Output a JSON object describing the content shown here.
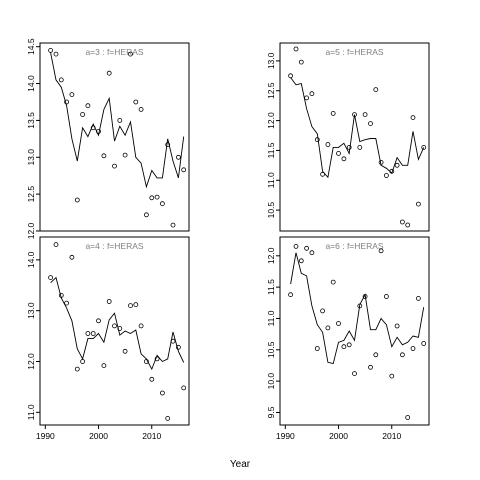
{
  "figure": {
    "xlabel": "Year"
  },
  "colors": {
    "line": "#000000",
    "points": "#000000",
    "frame": "#000000",
    "panel_title": "#808080"
  },
  "chart_data": [
    {
      "type": "scatter",
      "title": "a=3 : f=HERAS",
      "xlim": [
        1989,
        2017
      ],
      "ylim": [
        12.0,
        14.55
      ],
      "xticks": [
        1990,
        2000,
        2010
      ],
      "show_x_ticks": false,
      "yticks": [
        12.0,
        12.5,
        13.0,
        13.5,
        14.0,
        14.5
      ],
      "ytick_labels": [
        "12.0",
        "12.5",
        "13.0",
        "13.5",
        "14.0",
        "14.5"
      ],
      "series": [
        {
          "kind": "points",
          "x": [
            1991,
            1992,
            1993,
            1994,
            1995,
            1996,
            1997,
            1998,
            1999,
            2000,
            2001,
            2002,
            2003,
            2004,
            2005,
            2006,
            2007,
            2008,
            2009,
            2010,
            2011,
            2012,
            2013,
            2014,
            2015,
            2016
          ],
          "y": [
            14.45,
            14.4,
            14.05,
            13.75,
            13.85,
            12.42,
            13.58,
            13.7,
            13.4,
            13.35,
            13.02,
            14.14,
            12.88,
            13.5,
            13.03,
            14.4,
            13.75,
            13.65,
            12.22,
            12.45,
            12.46,
            12.37,
            13.17,
            12.08,
            13.0,
            12.83
          ]
        },
        {
          "kind": "line",
          "x": [
            1991,
            1992,
            1993,
            1994,
            1995,
            1996,
            1997,
            1998,
            1999,
            2000,
            2001,
            2002,
            2003,
            2004,
            2005,
            2006,
            2007,
            2008,
            2009,
            2010,
            2011,
            2012,
            2013,
            2014,
            2015,
            2016
          ],
          "y": [
            14.42,
            14.05,
            13.95,
            13.7,
            13.25,
            12.95,
            13.4,
            13.28,
            13.45,
            13.3,
            13.65,
            13.8,
            13.22,
            13.42,
            13.3,
            13.48,
            13.0,
            12.92,
            12.6,
            12.82,
            12.72,
            12.72,
            13.25,
            12.95,
            12.72,
            13.28
          ]
        }
      ]
    },
    {
      "type": "scatter",
      "title": "a=5 : f=HERAS",
      "xlim": [
        1989,
        2017
      ],
      "ylim": [
        10.15,
        13.3
      ],
      "xticks": [
        1990,
        2000,
        2010
      ],
      "show_x_ticks": false,
      "yticks": [
        10.5,
        11.0,
        11.5,
        12.0,
        12.5,
        13.0
      ],
      "ytick_labels": [
        "10.5",
        "11.0",
        "11.5",
        "12.0",
        "12.5",
        "13.0"
      ],
      "series": [
        {
          "kind": "points",
          "x": [
            1991,
            1992,
            1993,
            1994,
            1995,
            1996,
            1997,
            1998,
            1999,
            2000,
            2001,
            2002,
            2003,
            2004,
            2005,
            2006,
            2007,
            2008,
            2009,
            2010,
            2011,
            2012,
            2013,
            2014,
            2015,
            2016
          ],
          "y": [
            12.75,
            13.2,
            12.98,
            12.38,
            12.45,
            11.68,
            11.1,
            11.6,
            12.12,
            11.45,
            11.36,
            11.55,
            12.1,
            11.55,
            12.1,
            11.95,
            12.52,
            11.3,
            11.08,
            11.15,
            11.25,
            10.3,
            10.25,
            12.05,
            10.6,
            11.55
          ]
        },
        {
          "kind": "line",
          "x": [
            1991,
            1992,
            1993,
            1994,
            1995,
            1996,
            1997,
            1998,
            1999,
            2000,
            2001,
            2002,
            2003,
            2004,
            2005,
            2006,
            2007,
            2008,
            2009,
            2010,
            2011,
            2012,
            2013,
            2014,
            2015,
            2016
          ],
          "y": [
            12.72,
            12.6,
            12.62,
            12.2,
            11.9,
            11.78,
            11.15,
            11.05,
            11.55,
            11.55,
            11.62,
            11.45,
            12.1,
            11.65,
            11.68,
            11.7,
            11.7,
            11.25,
            11.2,
            11.12,
            11.38,
            11.25,
            11.25,
            11.82,
            11.35,
            11.55
          ]
        }
      ]
    },
    {
      "type": "scatter",
      "title": "a=4 : f=HERAS",
      "xlim": [
        1989,
        2017
      ],
      "ylim": [
        10.75,
        14.45
      ],
      "xticks": [
        1990,
        2000,
        2010
      ],
      "show_x_ticks": true,
      "yticks": [
        11.0,
        12.0,
        13.0,
        14.0
      ],
      "ytick_labels": [
        "11.0",
        "12.0",
        "13.0",
        "14.0"
      ],
      "series": [
        {
          "kind": "points",
          "x": [
            1991,
            1992,
            1993,
            1994,
            1995,
            1996,
            1997,
            1998,
            1999,
            2000,
            2001,
            2002,
            2003,
            2004,
            2005,
            2006,
            2007,
            2008,
            2009,
            2010,
            2011,
            2012,
            2013,
            2014,
            2015,
            2016
          ],
          "y": [
            13.65,
            14.3,
            13.3,
            13.15,
            14.05,
            11.85,
            12.0,
            12.55,
            12.55,
            12.8,
            11.92,
            13.18,
            12.7,
            12.65,
            12.2,
            13.1,
            13.12,
            12.7,
            12.0,
            11.65,
            12.05,
            11.38,
            10.88,
            12.4,
            12.28,
            11.48
          ]
        },
        {
          "kind": "line",
          "x": [
            1991,
            1992,
            1993,
            1994,
            1995,
            1996,
            1997,
            1998,
            1999,
            2000,
            2001,
            2002,
            2003,
            2004,
            2005,
            2006,
            2007,
            2008,
            2009,
            2010,
            2011,
            2012,
            2013,
            2014,
            2015,
            2016
          ],
          "y": [
            13.55,
            13.65,
            13.25,
            13.05,
            12.8,
            12.25,
            12.05,
            12.45,
            12.45,
            12.55,
            12.38,
            12.82,
            12.95,
            12.52,
            12.6,
            12.55,
            12.62,
            12.15,
            12.05,
            11.85,
            12.12,
            12.0,
            12.05,
            12.58,
            12.2,
            11.98
          ]
        }
      ]
    },
    {
      "type": "scatter",
      "title": "a=6 : f=HERAS",
      "xlim": [
        1989,
        2017
      ],
      "ylim": [
        9.3,
        12.3
      ],
      "xticks": [
        1990,
        2000,
        2010
      ],
      "show_x_ticks": true,
      "yticks": [
        9.5,
        10.0,
        10.5,
        11.0,
        11.5,
        12.0
      ],
      "ytick_labels": [
        "9.5",
        "10.0",
        "10.5",
        "11.0",
        "11.5",
        "12.0"
      ],
      "series": [
        {
          "kind": "points",
          "x": [
            1991,
            1992,
            1993,
            1994,
            1995,
            1996,
            1997,
            1998,
            1999,
            2000,
            2001,
            2002,
            2003,
            2004,
            2005,
            2006,
            2007,
            2008,
            2009,
            2010,
            2011,
            2012,
            2013,
            2014,
            2015,
            2016
          ],
          "y": [
            11.38,
            12.15,
            11.92,
            12.12,
            12.05,
            10.52,
            11.12,
            10.85,
            11.58,
            10.92,
            10.55,
            10.58,
            10.12,
            11.2,
            11.35,
            10.22,
            10.42,
            12.08,
            11.35,
            10.08,
            10.88,
            10.42,
            9.42,
            10.52,
            11.32,
            10.6
          ]
        },
        {
          "kind": "line",
          "x": [
            1991,
            1992,
            1993,
            1994,
            1995,
            1996,
            1997,
            1998,
            1999,
            2000,
            2001,
            2002,
            2003,
            2004,
            2005,
            2006,
            2007,
            2008,
            2009,
            2010,
            2011,
            2012,
            2013,
            2014,
            2015,
            2016
          ],
          "y": [
            11.55,
            12.05,
            11.72,
            11.68,
            11.2,
            10.9,
            10.78,
            10.3,
            10.28,
            10.62,
            10.65,
            10.8,
            10.65,
            11.22,
            11.38,
            10.82,
            10.82,
            11.0,
            10.9,
            10.55,
            10.7,
            10.58,
            10.62,
            10.72,
            10.7,
            11.18
          ]
        }
      ]
    }
  ]
}
